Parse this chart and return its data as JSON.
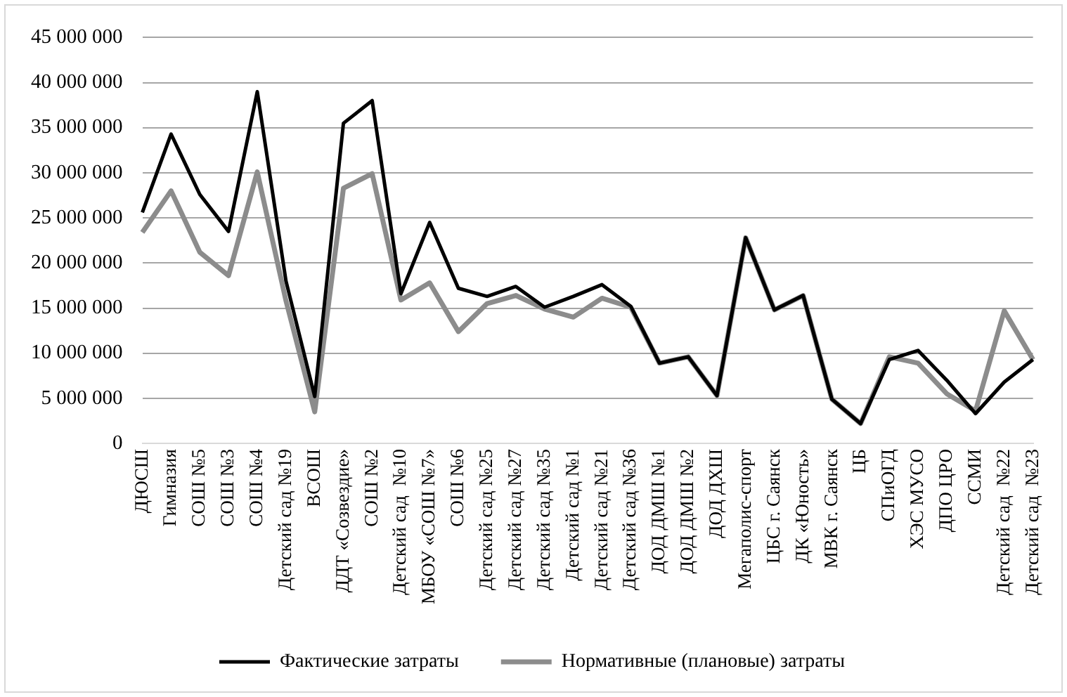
{
  "chart_data": {
    "type": "line",
    "categories": [
      "ДЮСШ",
      "Гимназия",
      "СОШ №5",
      "СОШ №3",
      "СОШ №4",
      "Детский сад №19",
      "ВСОШ",
      "ДДТ «Созвездие»",
      "СОШ №2",
      "Детский сад  №10",
      "МБОУ «СОШ №7»",
      "СОШ №6",
      "Детский сад №25",
      "Детский сад №27",
      "Детский сад №35",
      "Детский сад №1",
      "Детский сад №21",
      "Детский сад №36",
      "ДОД ДМШ №1",
      "ДОД ДМШ №2",
      "ДОД ДХШ",
      "Мегаполис-спорт",
      "ЦБС г. Саянск",
      "ДК «Юность»",
      "МВК г. Саянск",
      "ЦБ",
      "СПиОГД",
      "ХЭС МУСО",
      "ДПО ЦРО",
      "ССМИ",
      "Детский сад  №22",
      "Детский сад  №23"
    ],
    "series": [
      {
        "name": "Нормативные (плановые) затраты",
        "color": "#8c8c8c",
        "values": [
          23400000,
          28000000,
          21200000,
          18600000,
          30100000,
          15800000,
          3500000,
          28300000,
          29900000,
          15900000,
          17800000,
          12400000,
          15500000,
          16400000,
          14900000,
          14000000,
          16100000,
          15100000,
          8900000,
          9600000,
          5300000,
          22800000,
          14800000,
          16400000,
          4900000,
          2200000,
          9600000,
          8900000,
          5500000,
          3600000,
          14700000,
          9300000
        ]
      },
      {
        "name": "Фактические затраты",
        "color": "#000000",
        "values": [
          25600000,
          34300000,
          27600000,
          23500000,
          39000000,
          18000000,
          5200000,
          35500000,
          38000000,
          16600000,
          24500000,
          17200000,
          16300000,
          17400000,
          15100000,
          16300000,
          17600000,
          15200000,
          8900000,
          9600000,
          5300000,
          22800000,
          14800000,
          16400000,
          4900000,
          2200000,
          9300000,
          10300000,
          7000000,
          3300000,
          6800000,
          9300000
        ]
      }
    ],
    "ylim": [
      0,
      45000000
    ],
    "yticks": [
      {
        "value": 0,
        "label": "0"
      },
      {
        "value": 5000000,
        "label": "5 000 000"
      },
      {
        "value": 10000000,
        "label": "10 000 000"
      },
      {
        "value": 15000000,
        "label": "15 000 000"
      },
      {
        "value": 20000000,
        "label": "20 000 000"
      },
      {
        "value": 25000000,
        "label": "25 000 000"
      },
      {
        "value": 30000000,
        "label": "30 000 000"
      },
      {
        "value": 35000000,
        "label": "35 000 000"
      },
      {
        "value": 40000000,
        "label": "40 000 000"
      },
      {
        "value": 45000000,
        "label": "45 000 000"
      }
    ],
    "grid": "y",
    "legend": "bottom",
    "marker": "none",
    "line_style": "solid"
  }
}
